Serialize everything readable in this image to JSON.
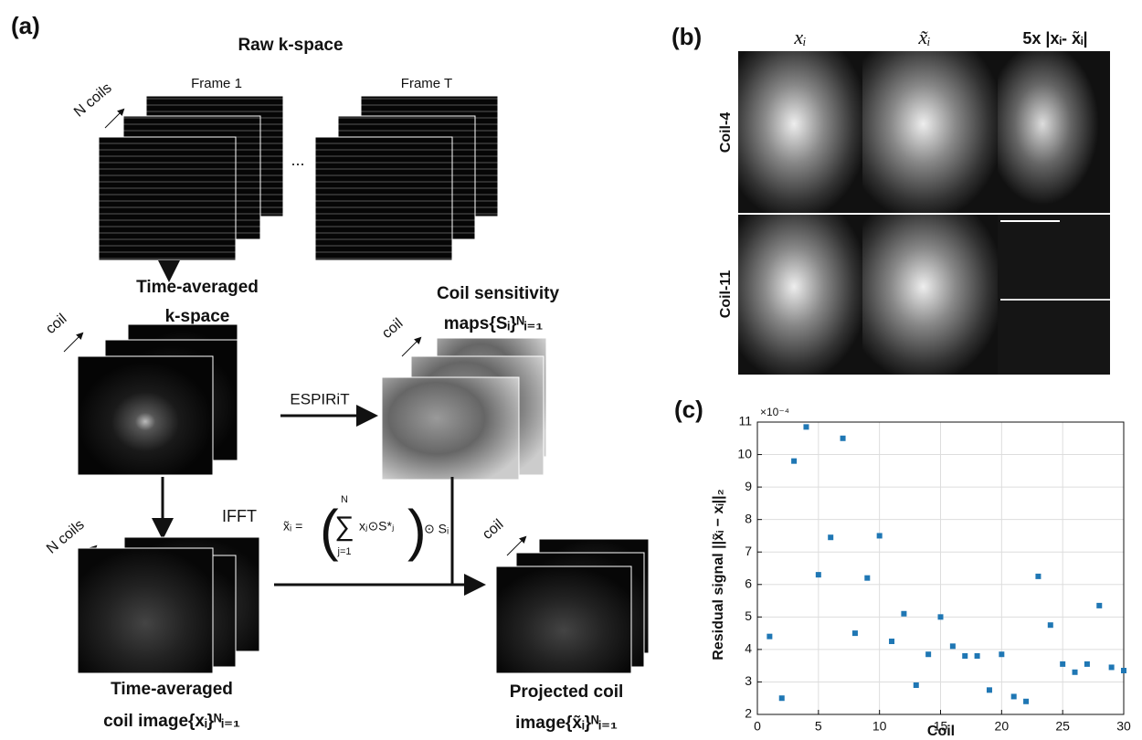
{
  "panel_a": {
    "label": "(a)",
    "raw_title": "Raw k-space",
    "n_coils_top": "N coils",
    "frame_1": "Frame 1",
    "frame_t": "Frame T",
    "ellipsis": "...",
    "time_avg_kspace": [
      "Time-averaged",
      "k-space"
    ],
    "coil_left": "coil",
    "sens_maps": [
      "Coil sensitivity",
      "maps{Sᵢ}ᴺᵢ₌₁"
    ],
    "espirit": "ESPIRiT",
    "ifft": "IFFT",
    "n_coils_bottom": "N coils",
    "coil_right": "coil",
    "formula": {
      "lhs": "x̃ᵢ = ",
      "upper": "N",
      "lower": "j=1",
      "body": "xⱼ⊙S*ⱼ",
      "rhs": "⊙ Sᵢ"
    },
    "time_avg_image": [
      "Time-averaged",
      "coil image{xᵢ}ᴺᵢ₌₁"
    ],
    "projected_image": [
      "Projected coil",
      "image{x̃ᵢ}ᴺᵢ₌₁"
    ]
  },
  "panel_b": {
    "label": "(b)",
    "columns": [
      "xᵢ",
      "x̃ᵢ",
      "5x |xᵢ- x̃ᵢ|"
    ],
    "rows": [
      "Coil-4",
      "Coil-11"
    ]
  },
  "chart_data": {
    "type": "scatter",
    "label": "(c)",
    "xlabel": "Coil",
    "ylabel": "Residual signal ||x̃ᵢ − xᵢ||₂",
    "y_multiplier": "×10⁻⁴",
    "color": "#1f77b4",
    "grid": true,
    "x": [
      1,
      2,
      3,
      4,
      5,
      6,
      7,
      8,
      9,
      10,
      11,
      12,
      13,
      14,
      15,
      16,
      17,
      18,
      19,
      20,
      21,
      22,
      23,
      24,
      25,
      26,
      27,
      28,
      29,
      30
    ],
    "values": [
      4.4,
      2.5,
      9.8,
      10.85,
      6.3,
      7.45,
      10.5,
      4.5,
      6.2,
      7.5,
      4.25,
      5.1,
      2.9,
      3.85,
      5.0,
      4.1,
      3.8,
      3.8,
      2.75,
      3.85,
      2.55,
      2.4,
      6.25,
      4.75,
      3.55,
      3.3,
      3.55,
      5.35,
      3.45,
      3.35
    ],
    "xlim": [
      0,
      30
    ],
    "xticks": [
      0,
      5,
      10,
      15,
      20,
      25,
      30
    ],
    "ylim": [
      2,
      11
    ],
    "yticks": [
      2,
      3,
      4,
      5,
      6,
      7,
      8,
      9,
      10,
      11
    ]
  }
}
